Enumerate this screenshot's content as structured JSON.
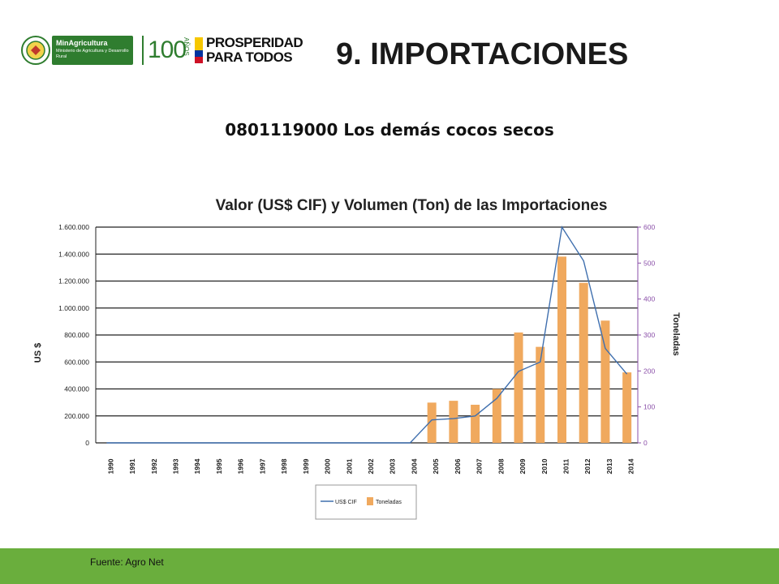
{
  "header": {
    "logo_minagri_title": "MinAgricultura",
    "logo_minagri_sub": "Ministerio de Agricultura y Desarrollo Rural",
    "logo_cien": "100",
    "logo_anos": "AÑOS",
    "logo_prosperidad": "PROSPERIDAD",
    "logo_para_todos": "PARA TODOS"
  },
  "slide_title": "9. IMPORTACIONES",
  "subtitle": "0801119000 Los demás cocos secos",
  "footer": {
    "source": "Fuente: Agro Net"
  },
  "colors": {
    "bar": "#f0a95e",
    "line": "#3f6fae",
    "footer": "#6aae3d",
    "right_axis": "#8a4fa8"
  },
  "chart_data": {
    "type": "bar",
    "title": "Valor (US$ CIF) y Volumen (Ton) de las Importaciones",
    "ylabel_left": "US $",
    "ylabel_right": "Toneladas",
    "categories": [
      "1990",
      "1991",
      "1992",
      "1993",
      "1994",
      "1995",
      "1996",
      "1997",
      "1998",
      "1999",
      "2000",
      "2001",
      "2002",
      "2003",
      "2004",
      "2005",
      "2006",
      "2007",
      "2008",
      "2009",
      "2010",
      "2011",
      "2012",
      "2013",
      "2014"
    ],
    "y_left_ticks": [
      "0",
      "200.000",
      "400.000",
      "600.000",
      "800.000",
      "1.000.000",
      "1.200.000",
      "1.400.000",
      "1.600.000"
    ],
    "y_left_lim": [
      0,
      1600000
    ],
    "y_right_ticks": [
      "0",
      "100",
      "200",
      "300",
      "400",
      "500",
      "600"
    ],
    "y_right_lim": [
      0,
      600
    ],
    "grid": true,
    "legend_position": "bottom",
    "series": [
      {
        "name": "US$ CIF",
        "type": "line",
        "axis": "left",
        "values": [
          0,
          0,
          0,
          0,
          0,
          0,
          0,
          0,
          0,
          0,
          0,
          0,
          0,
          0,
          0,
          170000,
          180000,
          200000,
          330000,
          530000,
          600000,
          1600000,
          1350000,
          700000,
          510000
        ]
      },
      {
        "name": "Toneladas",
        "type": "bar",
        "axis": "right",
        "values": [
          0,
          0,
          0,
          0,
          0,
          0,
          0,
          0,
          0,
          0,
          0,
          0,
          0,
          0,
          0,
          112,
          117,
          106,
          150,
          307,
          267,
          518,
          445,
          340,
          196
        ]
      }
    ]
  }
}
